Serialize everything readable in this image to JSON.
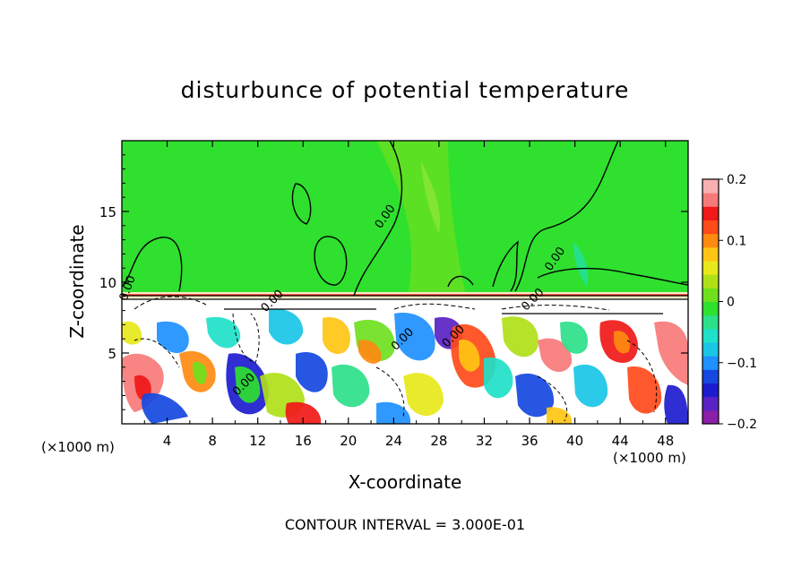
{
  "chart_data": {
    "type": "heatmap",
    "title": "disturbunce of potential temperature",
    "xlabel": "X-coordinate",
    "ylabel": "Z-coordinate",
    "x_unit": "(×1000 m)",
    "x_ticks": [
      4,
      8,
      12,
      16,
      20,
      24,
      28,
      32,
      36,
      40,
      44,
      48
    ],
    "y_ticks": [
      5,
      10,
      15
    ],
    "xlim": [
      0,
      50
    ],
    "ylim": [
      0,
      20
    ],
    "colorbar": {
      "ticks": [
        -0.2,
        -0.1,
        0,
        0.1,
        0.2
      ],
      "tick_labels": [
        "−0.2",
        "−0.1",
        "0",
        "0.1",
        "0.2"
      ],
      "colors": [
        "#8b1fa8",
        "#5a22c4",
        "#1c1ccf",
        "#1448e0",
        "#1e90ff",
        "#19c6e6",
        "#1fe0c8",
        "#2ce08a",
        "#2fe02f",
        "#6fe01e",
        "#b0e018",
        "#e8e81a",
        "#ffc414",
        "#ff8a10",
        "#ff4a1a",
        "#f01818",
        "#f77a7a",
        "#f9b0b0"
      ]
    },
    "contour_labels": [
      {
        "text": "0.00",
        "x": 0.8,
        "z": 9.5
      },
      {
        "text": "0.00",
        "x": 23.5,
        "z": 14.5
      },
      {
        "text": "0.00",
        "x": 38.5,
        "z": 11.5
      },
      {
        "text": "0.00",
        "x": 13.5,
        "z": 8.5
      },
      {
        "text": "0.00",
        "x": 36.5,
        "z": 8.6
      },
      {
        "text": "0.00",
        "x": 25,
        "z": 5.8
      },
      {
        "text": "0.00",
        "x": 29.5,
        "z": 6
      },
      {
        "text": "0.00",
        "x": 11,
        "z": 2.6
      }
    ],
    "contour_interval": "CONTOUR INTERVAL = 3.000E-01"
  }
}
